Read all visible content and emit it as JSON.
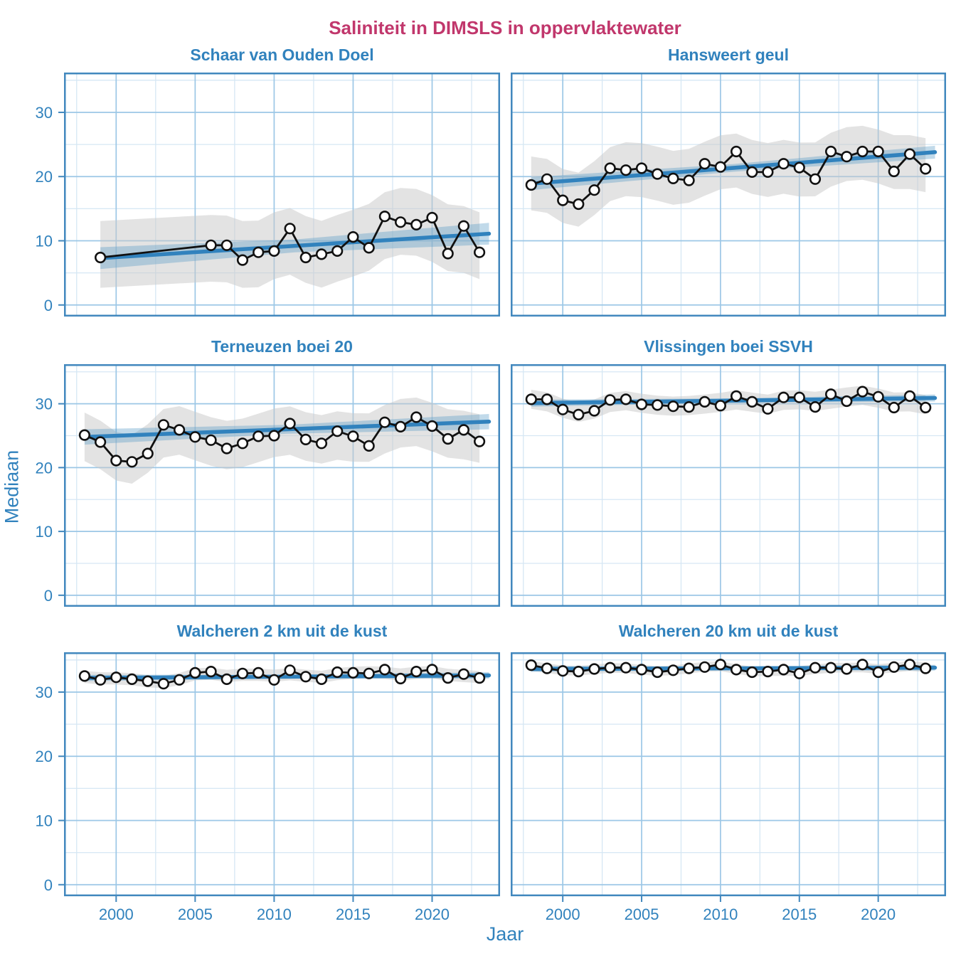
{
  "title": {
    "text": "Saliniteit in DIMSLS in oppervlaktewater",
    "color": "#C1376C"
  },
  "axes": {
    "x_label": "Jaar",
    "y_label": "Mediaan",
    "x_ticks": [
      2000,
      2005,
      2010,
      2015,
      2020
    ],
    "x_minor": [
      1997.5,
      2002.5,
      2007.5,
      2012.5,
      2017.5,
      2022.5
    ],
    "y_ticks": [
      0,
      10,
      20,
      30
    ],
    "y_minor": [
      5,
      15,
      25,
      35
    ],
    "x_domain": [
      1996.7,
      2024.3
    ],
    "y_domain": [
      -1.8,
      36.2
    ],
    "grid": true,
    "legend": "none"
  },
  "colors": {
    "panel_title": "#3182BD",
    "tick_label": "#3182BD",
    "axis_label": "#3182BD",
    "border": "#4288BE",
    "grid_major": "#9CC7E6",
    "grid_minor": "#D6E7F4",
    "trend_line": "#3182BD",
    "trend_band": "#5B9EC9",
    "gray_band": "#C8C8C8",
    "data_line": "#111111",
    "marker_fill": "#FFFFFF",
    "marker_stroke": "#111111"
  },
  "chart_data": [
    {
      "type": "line",
      "title": "Schaar van Ouden Doel",
      "x": [
        1999,
        2006,
        2007,
        2008,
        2009,
        2010,
        2011,
        2012,
        2013,
        2014,
        2015,
        2016,
        2017,
        2018,
        2019,
        2020,
        2021,
        2022,
        2023
      ],
      "y": [
        7.4,
        9.3,
        9.3,
        7.0,
        8.2,
        8.4,
        11.9,
        7.4,
        7.9,
        8.4,
        10.6,
        8.9,
        13.8,
        12.9,
        12.5,
        13.6,
        8.0,
        12.3,
        8.2
      ],
      "trend": {
        "x0": 1999,
        "v0": 7.3,
        "x1": 2023.6,
        "v1": 11.1
      },
      "ci_half_end": 1.7,
      "ci_half_mid": 1.0,
      "band_half": 5.2
    },
    {
      "type": "line",
      "title": "Hansweert geul",
      "x": [
        1998,
        1999,
        2000,
        2001,
        2002,
        2003,
        2004,
        2005,
        2006,
        2007,
        2008,
        2009,
        2010,
        2011,
        2012,
        2013,
        2014,
        2015,
        2016,
        2017,
        2018,
        2019,
        2020,
        2021,
        2022,
        2023
      ],
      "y": [
        18.7,
        19.6,
        16.3,
        15.7,
        17.9,
        21.3,
        21.0,
        21.3,
        20.4,
        19.7,
        19.4,
        22.0,
        21.5,
        23.9,
        20.7,
        20.7,
        22.0,
        21.4,
        19.6,
        23.9,
        23.1,
        23.9,
        23.9,
        20.8,
        23.5,
        21.2
      ],
      "trend": {
        "x0": 1998,
        "v0": 18.9,
        "x1": 2023.6,
        "v1": 23.8
      },
      "ci_half_end": 1.0,
      "ci_half_mid": 0.6,
      "band_half": 4.2
    },
    {
      "type": "line",
      "title": "Terneuzen boei 20",
      "x": [
        1998,
        1999,
        2000,
        2001,
        2002,
        2003,
        2004,
        2005,
        2006,
        2007,
        2008,
        2009,
        2010,
        2011,
        2012,
        2013,
        2014,
        2015,
        2016,
        2017,
        2018,
        2019,
        2020,
        2021,
        2022,
        2023
      ],
      "y": [
        25.1,
        24.0,
        21.1,
        20.9,
        22.2,
        26.7,
        25.9,
        24.8,
        24.3,
        23.0,
        23.8,
        24.9,
        25.0,
        26.9,
        24.4,
        23.8,
        25.7,
        24.9,
        23.4,
        27.1,
        26.4,
        27.9,
        26.5,
        24.5,
        25.9,
        24.1
      ],
      "trend": {
        "x0": 1998,
        "v0": 24.8,
        "x1": 2023.6,
        "v1": 27.2
      },
      "ci_half_end": 1.2,
      "ci_half_mid": 0.7,
      "band_half": 3.8
    },
    {
      "type": "line",
      "title": "Vlissingen boei SSVH",
      "x": [
        1998,
        1999,
        2000,
        2001,
        2002,
        2003,
        2004,
        2005,
        2006,
        2007,
        2008,
        2009,
        2010,
        2011,
        2012,
        2013,
        2014,
        2015,
        2016,
        2017,
        2018,
        2019,
        2020,
        2021,
        2022,
        2023
      ],
      "y": [
        30.7,
        30.7,
        29.1,
        28.3,
        28.9,
        30.6,
        30.7,
        29.9,
        29.8,
        29.6,
        29.5,
        30.3,
        29.7,
        31.2,
        30.3,
        29.2,
        31.0,
        31.0,
        29.5,
        31.5,
        30.4,
        31.9,
        31.1,
        29.4,
        31.2,
        29.4
      ],
      "trend": {
        "x0": 1998,
        "v0": 30.1,
        "x1": 2023.6,
        "v1": 30.9
      },
      "ci_half_end": 0.55,
      "ci_half_mid": 0.35,
      "band_half": 1.5
    },
    {
      "type": "line",
      "title": "Walcheren 2 km uit de kust",
      "x": [
        1998,
        1999,
        2000,
        2001,
        2002,
        2003,
        2004,
        2005,
        2006,
        2007,
        2008,
        2009,
        2010,
        2011,
        2012,
        2013,
        2014,
        2015,
        2016,
        2017,
        2018,
        2019,
        2020,
        2021,
        2022,
        2023
      ],
      "y": [
        32.5,
        31.9,
        32.3,
        32.0,
        31.7,
        31.3,
        31.9,
        33.0,
        33.2,
        32.0,
        32.9,
        33.0,
        31.9,
        33.4,
        32.4,
        32.0,
        33.1,
        33.0,
        32.9,
        33.5,
        32.1,
        33.2,
        33.5,
        32.2,
        32.8,
        32.2
      ],
      "trend": {
        "x0": 1998,
        "v0": 32.2,
        "x1": 2023.6,
        "v1": 32.6
      },
      "ci_half_end": 0.5,
      "ci_half_mid": 0.3,
      "band_half": 0.95
    },
    {
      "type": "line",
      "title": "Walcheren 20 km uit de kust",
      "x": [
        1998,
        1999,
        2000,
        2001,
        2002,
        2003,
        2004,
        2005,
        2006,
        2007,
        2008,
        2009,
        2010,
        2011,
        2012,
        2013,
        2014,
        2015,
        2016,
        2017,
        2018,
        2019,
        2020,
        2021,
        2022,
        2023
      ],
      "y": [
        34.2,
        33.7,
        33.3,
        33.2,
        33.6,
        33.8,
        33.8,
        33.5,
        33.1,
        33.4,
        33.7,
        33.9,
        34.3,
        33.5,
        33.1,
        33.2,
        33.5,
        32.9,
        33.8,
        33.8,
        33.6,
        34.3,
        33.1,
        33.9,
        34.3,
        33.7
      ],
      "trend": {
        "x0": 1998,
        "v0": 33.6,
        "x1": 2023.6,
        "v1": 33.8
      },
      "ci_half_end": 0.45,
      "ci_half_mid": 0.3,
      "band_half": 0.75
    }
  ]
}
